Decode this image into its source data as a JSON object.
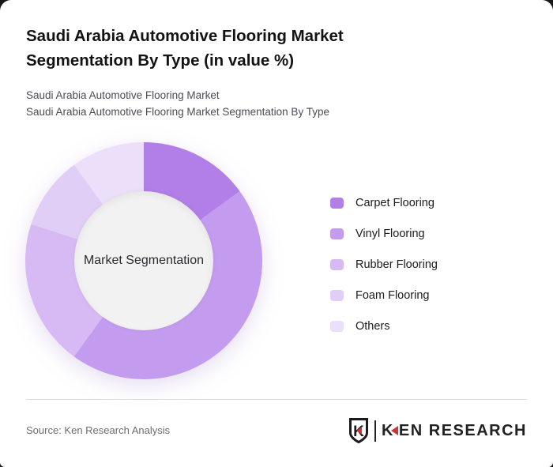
{
  "header": {
    "title_line1": "Saudi Arabia Automotive Flooring Market",
    "title_line2": "Segmentation By Type (in value %)",
    "subtitle_line1": "Saudi Arabia Automotive Flooring Market",
    "subtitle_line2": "Saudi Arabia Automotive Flooring Market Segmentation By Type"
  },
  "chart_data": {
    "type": "pie",
    "donut": true,
    "title": "Saudi Arabia Automotive Flooring Market Segmentation By Type (in value %)",
    "center_label": "Market Segmentation",
    "unit": "percent of value",
    "legend_position": "right",
    "categories": [
      "Carpet Flooring",
      "Vinyl Flooring",
      "Rubber Flooring",
      "Foam Flooring",
      "Others"
    ],
    "values": [
      15,
      45,
      20,
      10,
      10
    ],
    "colors": [
      "#b27ee7",
      "#c39bef",
      "#d7baf4",
      "#e1cef7",
      "#ecdffa"
    ],
    "start_angle_deg": 0,
    "hole_fill": "#f2f2f2"
  },
  "footer": {
    "source": "Source: Ken Research Analysis",
    "logo": {
      "emblem_letter": "K",
      "wordmark_k": "K",
      "wordmark_rest": "EN RESEARCH",
      "accent_color": "#c9373d",
      "text_color": "#222226"
    }
  }
}
